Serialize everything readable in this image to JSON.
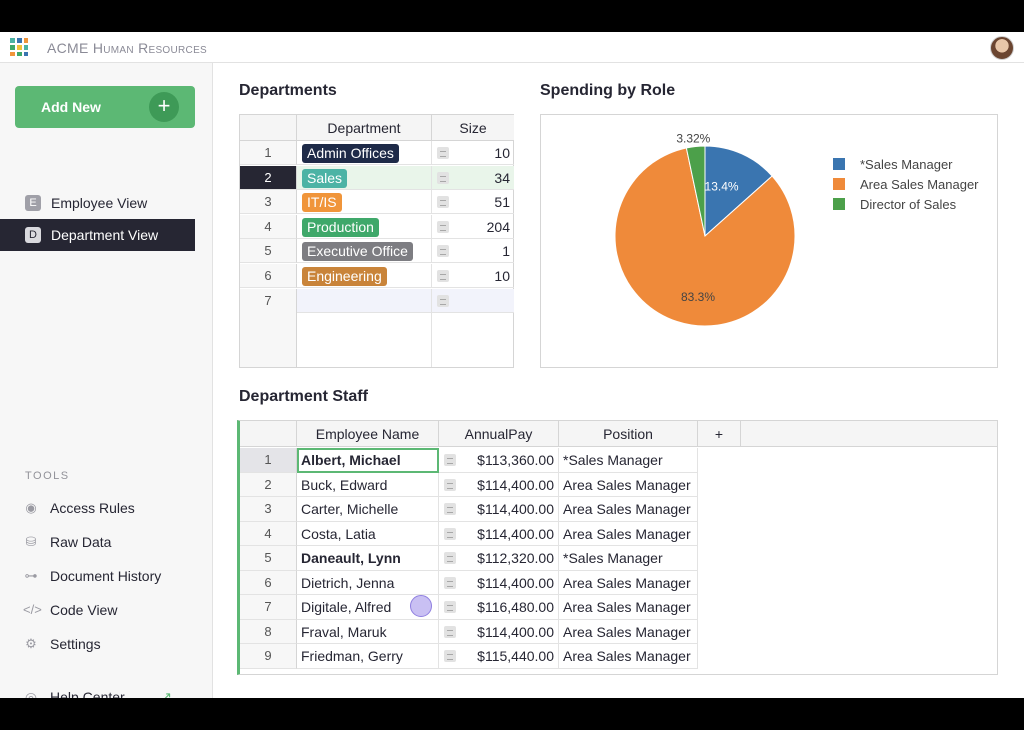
{
  "app": {
    "title": "ACME Human Resources"
  },
  "sidebar": {
    "add_new_label": "Add New",
    "pages": [
      {
        "badge": "E",
        "label": "Employee View",
        "active": false
      },
      {
        "badge": "D",
        "label": "Department View",
        "active": true
      }
    ],
    "tools_heading": "TOOLS",
    "tools": [
      {
        "icon": "eye-icon",
        "label": "Access Rules"
      },
      {
        "icon": "database-icon",
        "label": "Raw Data"
      },
      {
        "icon": "history-icon",
        "label": "Document History"
      },
      {
        "icon": "code-icon",
        "label": "Code View"
      },
      {
        "icon": "gear-icon",
        "label": "Settings"
      }
    ],
    "help_label": "Help Center"
  },
  "departments": {
    "title": "Departments",
    "columns": [
      "Department",
      "Size"
    ],
    "rows": [
      {
        "num": "1",
        "dept": "Admin Offices",
        "color": "#1e2a48",
        "size": "10"
      },
      {
        "num": "2",
        "dept": "Sales",
        "color": "#4cb3a5",
        "size": "34"
      },
      {
        "num": "3",
        "dept": "IT/IS",
        "color": "#f0953a",
        "size": "51"
      },
      {
        "num": "4",
        "dept": "Production",
        "color": "#3fa86a",
        "size": "204"
      },
      {
        "num": "5",
        "dept": "Executive Office",
        "color": "#7d7d82",
        "size": "1"
      },
      {
        "num": "6",
        "dept": "Engineering",
        "color": "#c9843a",
        "size": "10"
      },
      {
        "num": "7",
        "dept": "",
        "color": "",
        "size": ""
      }
    ],
    "selected_row": 2
  },
  "chart_data": {
    "type": "pie",
    "title": "Spending by Role",
    "slices": [
      {
        "label": "*Sales Manager",
        "value": 13.4,
        "display": "13.4%",
        "color": "#3a75b0"
      },
      {
        "label": "Area Sales Manager",
        "value": 83.3,
        "display": "83.3%",
        "color": "#ef8a3a"
      },
      {
        "label": "Director of Sales",
        "value": 3.32,
        "display": "3.32%",
        "color": "#4ca04a"
      }
    ],
    "legend": "right"
  },
  "staff": {
    "title": "Department Staff",
    "columns": [
      "Employee Name",
      "AnnualPay",
      "Position",
      "+"
    ],
    "rows": [
      {
        "num": "1",
        "name": "Albert, Michael",
        "pay": "$113,360.00",
        "position": "*Sales Manager",
        "bold": true
      },
      {
        "num": "2",
        "name": "Buck, Edward",
        "pay": "$114,400.00",
        "position": "Area Sales Manager",
        "bold": false
      },
      {
        "num": "3",
        "name": "Carter, Michelle",
        "pay": "$114,400.00",
        "position": "Area Sales Manager",
        "bold": false
      },
      {
        "num": "4",
        "name": "Costa, Latia",
        "pay": "$114,400.00",
        "position": "Area Sales Manager",
        "bold": false
      },
      {
        "num": "5",
        "name": "Daneault, Lynn",
        "pay": "$112,320.00",
        "position": "*Sales Manager",
        "bold": true
      },
      {
        "num": "6",
        "name": "Dietrich, Jenna",
        "pay": "$114,400.00",
        "position": "Area Sales Manager",
        "bold": false
      },
      {
        "num": "7",
        "name": "Digitale, Alfred",
        "pay": "$116,480.00",
        "position": "Area Sales Manager",
        "bold": false
      },
      {
        "num": "8",
        "name": "Fraval, Maruk",
        "pay": "$114,400.00",
        "position": "Area Sales Manager",
        "bold": false
      },
      {
        "num": "9",
        "name": "Friedman, Gerry",
        "pay": "$115,440.00",
        "position": "Area Sales Manager",
        "bold": false
      }
    ]
  }
}
